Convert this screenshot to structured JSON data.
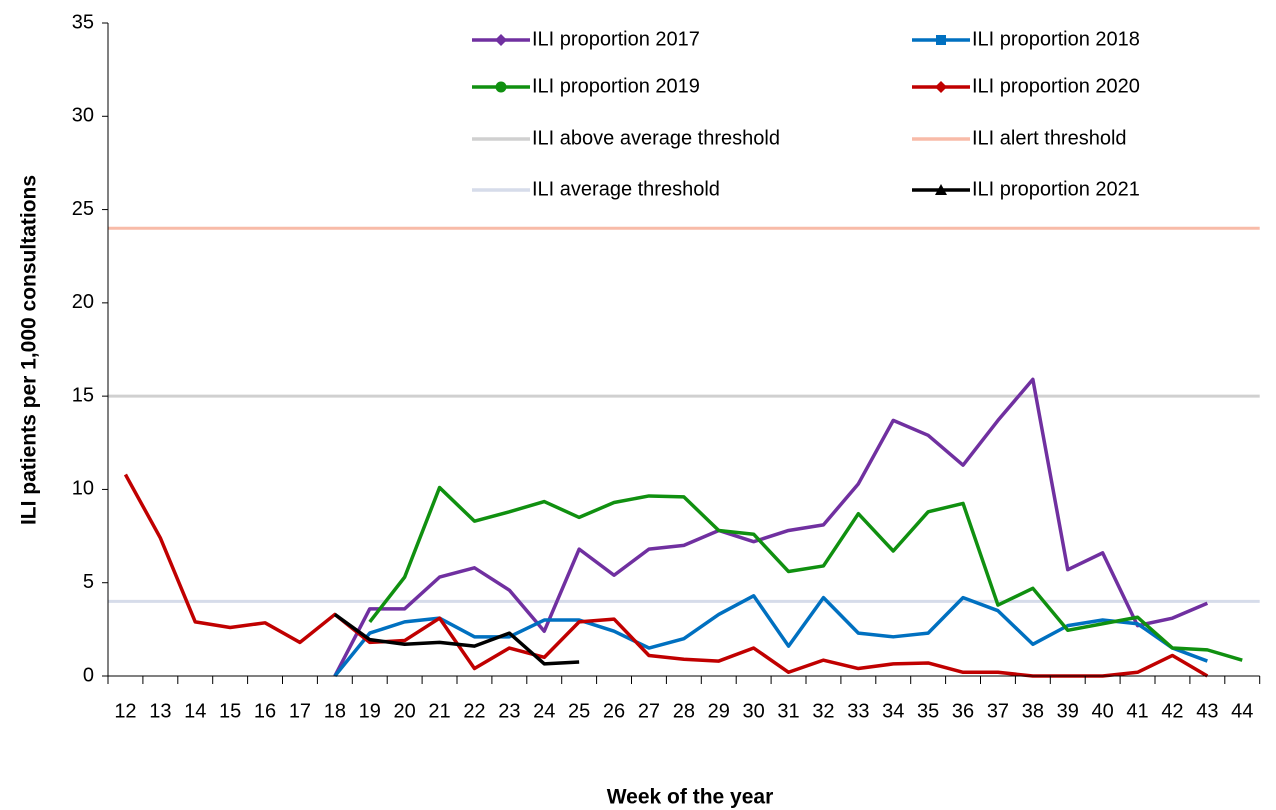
{
  "chart_data": {
    "type": "line",
    "x_label": "Week of the year",
    "y_label": "ILI patients per 1,000 consultations",
    "categories": [
      "12",
      "13",
      "14",
      "15",
      "16",
      "17",
      "18",
      "19",
      "20",
      "21",
      "22",
      "23",
      "24",
      "25",
      "26",
      "27",
      "28",
      "29",
      "30",
      "31",
      "32",
      "33",
      "34",
      "35",
      "36",
      "37",
      "38",
      "39",
      "40",
      "41",
      "42",
      "43",
      "44"
    ],
    "ylim": [
      0,
      35
    ],
    "yticks": [
      0,
      5,
      10,
      15,
      20,
      25,
      30,
      35
    ],
    "series": [
      {
        "name": "ILI proportion 2017",
        "color": "#7030a0",
        "marker": "diamond",
        "values": [
          null,
          null,
          null,
          null,
          null,
          null,
          0,
          3.6,
          3.6,
          5.3,
          5.8,
          4.6,
          2.4,
          6.8,
          5.4,
          6.8,
          7.0,
          7.8,
          7.2,
          7.8,
          8.1,
          10.3,
          13.7,
          12.9,
          11.3,
          13.7,
          15.9,
          5.7,
          6.6,
          2.7,
          3.1,
          3.9,
          null
        ]
      },
      {
        "name": "ILI proportion 2018",
        "color": "#0070c0",
        "marker": "square",
        "values": [
          null,
          null,
          null,
          null,
          null,
          null,
          0,
          2.3,
          2.9,
          3.1,
          2.1,
          2.1,
          3.0,
          3.0,
          2.4,
          1.5,
          2.0,
          3.3,
          4.3,
          1.6,
          4.2,
          2.3,
          2.1,
          2.3,
          4.2,
          3.5,
          1.7,
          2.7,
          3.0,
          2.8,
          1.5,
          0.8,
          null
        ]
      },
      {
        "name": "ILI proportion 2019",
        "color": "#109010",
        "marker": "circle",
        "values": [
          null,
          null,
          null,
          null,
          null,
          null,
          null,
          2.9,
          5.3,
          10.1,
          8.3,
          8.8,
          9.35,
          8.5,
          9.3,
          9.65,
          9.6,
          7.8,
          7.6,
          5.6,
          5.9,
          8.7,
          6.7,
          8.8,
          9.25,
          3.8,
          4.7,
          2.45,
          2.8,
          3.15,
          1.5,
          1.4,
          0.85
        ]
      },
      {
        "name": "ILI proportion 2020",
        "color": "#c00000",
        "marker": "diamond",
        "values": [
          10.8,
          7.4,
          2.9,
          2.6,
          2.85,
          1.8,
          3.3,
          1.8,
          1.9,
          3.1,
          0.4,
          1.5,
          1.0,
          2.9,
          3.05,
          1.1,
          0.9,
          0.8,
          1.5,
          0.2,
          0.85,
          0.4,
          0.65,
          0.7,
          0.2,
          0.2,
          0,
          0,
          0,
          0.2,
          1.1,
          0,
          null
        ]
      },
      {
        "name": "ILI above average threshold",
        "color": "#d0d0d0",
        "marker": "none",
        "value": 15
      },
      {
        "name": "ILI alert threshold",
        "color": "#f8bba8",
        "marker": "none",
        "value": 24
      },
      {
        "name": "ILI average threshold",
        "color": "#d6dcea",
        "marker": "none",
        "value": 4
      },
      {
        "name": "ILI proportion 2021",
        "color": "#000000",
        "marker": "triangle",
        "values": [
          null,
          null,
          null,
          null,
          null,
          null,
          3.3,
          1.95,
          1.7,
          1.8,
          1.6,
          2.3,
          0.65,
          0.75,
          null,
          null,
          null,
          null,
          null,
          null,
          null,
          null,
          null,
          null,
          null,
          null,
          null,
          null,
          null,
          null,
          null,
          null,
          null
        ]
      }
    ]
  }
}
